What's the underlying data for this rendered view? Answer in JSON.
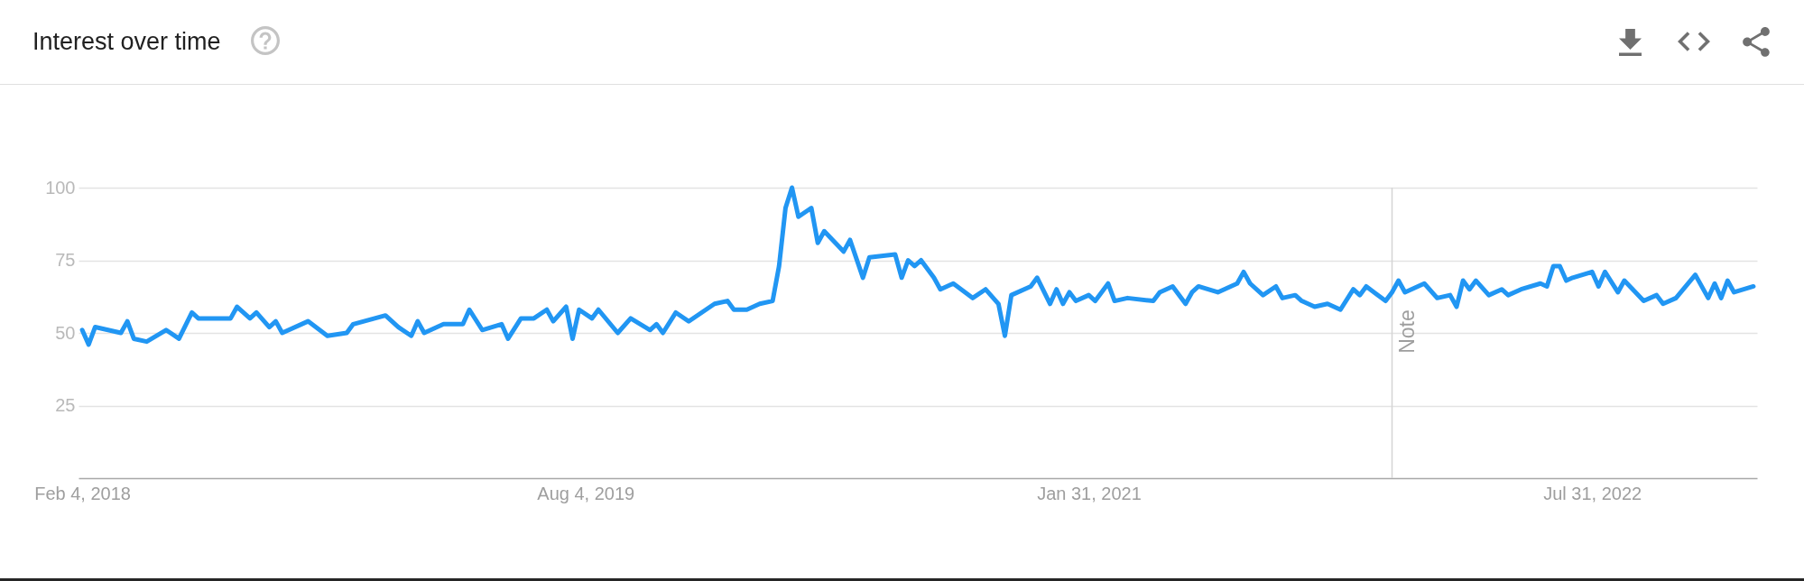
{
  "chart_data": {
    "type": "line",
    "title": "Interest over time",
    "x": [
      "2018-02-04",
      "2018-02-11",
      "2018-02-18",
      "2018-03-04",
      "2018-03-18",
      "2018-03-25",
      "2018-04-01",
      "2018-04-15",
      "2018-05-06",
      "2018-05-20",
      "2018-06-03",
      "2018-06-10",
      "2018-07-15",
      "2018-07-22",
      "2018-08-05",
      "2018-08-12",
      "2018-08-26",
      "2018-09-02",
      "2018-09-09",
      "2018-10-07",
      "2018-10-28",
      "2018-11-18",
      "2018-11-25",
      "2018-12-30",
      "2019-01-13",
      "2019-01-27",
      "2019-02-03",
      "2019-02-10",
      "2019-03-03",
      "2019-03-24",
      "2019-03-31",
      "2019-04-14",
      "2019-05-05",
      "2019-05-12",
      "2019-05-26",
      "2019-06-09",
      "2019-06-23",
      "2019-06-30",
      "2019-07-14",
      "2019-07-21",
      "2019-07-28",
      "2019-08-11",
      "2019-08-18",
      "2019-09-08",
      "2019-09-22",
      "2019-10-13",
      "2019-10-20",
      "2019-10-27",
      "2019-11-10",
      "2019-11-24",
      "2019-12-22",
      "2020-01-05",
      "2020-01-12",
      "2020-01-26",
      "2020-02-09",
      "2020-02-23",
      "2020-03-01",
      "2020-03-08",
      "2020-03-15",
      "2020-03-22",
      "2020-04-05",
      "2020-04-12",
      "2020-04-19",
      "2020-05-10",
      "2020-05-17",
      "2020-05-31",
      "2020-06-07",
      "2020-07-05",
      "2020-07-12",
      "2020-07-19",
      "2020-07-26",
      "2020-08-02",
      "2020-08-16",
      "2020-08-23",
      "2020-09-06",
      "2020-09-27",
      "2020-10-11",
      "2020-10-25",
      "2020-11-01",
      "2020-11-08",
      "2020-11-29",
      "2020-12-06",
      "2020-12-20",
      "2020-12-27",
      "2021-01-03",
      "2021-01-10",
      "2021-01-17",
      "2021-01-31",
      "2021-02-07",
      "2021-02-21",
      "2021-02-28",
      "2021-03-14",
      "2021-04-11",
      "2021-04-18",
      "2021-05-02",
      "2021-05-16",
      "2021-05-23",
      "2021-05-30",
      "2021-06-20",
      "2021-07-11",
      "2021-07-18",
      "2021-07-25",
      "2021-08-08",
      "2021-08-22",
      "2021-08-29",
      "2021-09-12",
      "2021-09-19",
      "2021-10-03",
      "2021-10-17",
      "2021-10-31",
      "2021-11-14",
      "2021-11-21",
      "2021-11-28",
      "2021-12-19",
      "2021-12-26",
      "2022-01-02",
      "2022-01-09",
      "2022-01-30",
      "2022-02-13",
      "2022-02-27",
      "2022-03-06",
      "2022-03-13",
      "2022-03-20",
      "2022-03-27",
      "2022-04-10",
      "2022-04-24",
      "2022-05-01",
      "2022-05-15",
      "2022-06-05",
      "2022-06-12",
      "2022-06-19",
      "2022-06-26",
      "2022-07-03",
      "2022-07-10",
      "2022-07-31",
      "2022-08-07",
      "2022-08-14",
      "2022-08-28",
      "2022-09-04",
      "2022-09-25",
      "2022-10-09",
      "2022-10-16",
      "2022-10-30",
      "2022-11-20",
      "2022-12-04",
      "2022-12-11",
      "2022-12-18",
      "2022-12-25",
      "2023-01-01",
      "2023-01-22"
    ],
    "values": [
      51,
      46,
      52,
      51,
      50,
      54,
      48,
      47,
      51,
      48,
      57,
      55,
      55,
      59,
      55,
      57,
      52,
      54,
      50,
      54,
      49,
      50,
      53,
      56,
      52,
      49,
      54,
      50,
      53,
      53,
      58,
      51,
      53,
      48,
      55,
      55,
      58,
      54,
      59,
      48,
      58,
      55,
      58,
      50,
      55,
      51,
      53,
      50,
      57,
      54,
      60,
      61,
      58,
      58,
      60,
      61,
      73,
      93,
      100,
      90,
      93,
      81,
      85,
      78,
      82,
      69,
      76,
      77,
      69,
      75,
      73,
      75,
      69,
      65,
      67,
      62,
      65,
      60,
      49,
      63,
      66,
      69,
      60,
      65,
      60,
      64,
      61,
      63,
      61,
      67,
      61,
      62,
      61,
      64,
      66,
      60,
      64,
      66,
      64,
      67,
      71,
      67,
      63,
      66,
      62,
      63,
      61,
      59,
      60,
      58,
      65,
      63,
      66,
      61,
      64,
      68,
      64,
      67,
      62,
      63,
      59,
      68,
      65,
      68,
      63,
      65,
      63,
      65,
      67,
      66,
      73,
      73,
      68,
      69,
      71,
      66,
      71,
      64,
      68,
      61,
      63,
      60,
      62,
      70,
      62,
      67,
      62,
      68,
      64,
      66
    ],
    "color": "#2196f3",
    "line_style": "solid",
    "xlim": [
      "2018-01-31",
      "2023-01-26"
    ],
    "xticks": [
      {
        "value": "2018-02-04",
        "label": "Feb 4, 2018"
      },
      {
        "value": "2019-08-04",
        "label": "Aug 4, 2019"
      },
      {
        "value": "2021-01-31",
        "label": "Jan 31, 2021"
      },
      {
        "value": "2022-07-31",
        "label": "Jul 31, 2022"
      }
    ],
    "ylim": [
      0,
      100
    ],
    "yticks": [
      25,
      50,
      75,
      100
    ],
    "grid": "y",
    "ref_lines": [
      {
        "axis": "x",
        "value": "2021-12-26",
        "label": "Note",
        "color": "#d4d4d4"
      }
    ]
  }
}
